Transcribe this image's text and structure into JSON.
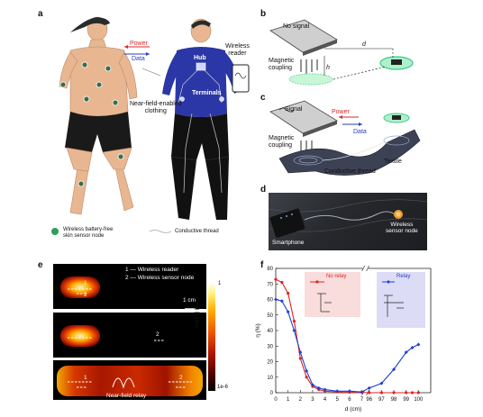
{
  "panel_a": {
    "label": "a",
    "power": "Power",
    "data": "Data",
    "wireless_reader": "Wireless\nreader",
    "hub": "Hub",
    "terminals": "Terminals",
    "clothing": "Near-field-enabled\nclothing",
    "legend_node": "Wireless battery-free\nskin sensor node",
    "legend_thread": "Conductive thread"
  },
  "panel_b": {
    "label": "b",
    "no_signal": "No signal",
    "magnetic_coupling": "Magnetic\ncoupling",
    "d": "d",
    "h": "h"
  },
  "panel_c": {
    "label": "c",
    "signal": "Signal",
    "power": "Power",
    "data": "Data",
    "magnetic_coupling": "Magnetic\ncoupling",
    "textile": "Textile",
    "conductive_thread": "Conductive thread"
  },
  "panel_d": {
    "label": "d",
    "smartphone": "Smartphone",
    "node": "Wireless\nsensor node"
  },
  "panel_e": {
    "label": "e",
    "legend1": "1 — Wireless reader",
    "legend2": "2 — Wireless sensor node",
    "scale": "1 cm",
    "relay": "Near-field relay",
    "n1": "1",
    "n2": "2",
    "cb_top": "1",
    "cb_bottom": "1e-6",
    "cb_label": "log|H",
    "cb_sub": "z",
    "cb_unit": "| (a.u.)"
  },
  "panel_f": {
    "label": "f",
    "no_relay": "No relay",
    "relay": "Relay"
  },
  "chart_data": {
    "type": "line",
    "xlabel": "d (cm)",
    "ylabel": "η (%)",
    "ylim": [
      0,
      80
    ],
    "yticks": [
      "0",
      "10",
      "20",
      "30",
      "40",
      "50",
      "60",
      "70",
      "80"
    ],
    "xticks": [
      "0",
      "1",
      "2",
      "3",
      "4",
      "5",
      "6",
      "7",
      "96",
      "97",
      "98",
      "99",
      "100"
    ],
    "series": [
      {
        "name": "No relay",
        "color": "#e02424",
        "x": [
          0,
          0.5,
          1,
          1.5,
          2,
          2.5,
          3,
          3.5,
          4,
          5,
          6,
          7,
          96,
          97,
          98,
          99,
          99.5,
          100
        ],
        "y": [
          73,
          71,
          64,
          46,
          22,
          10,
          4,
          2,
          1,
          0.5,
          0.3,
          0.2,
          0,
          0,
          0,
          0,
          0,
          0
        ]
      },
      {
        "name": "Relay",
        "color": "#1f3fd1",
        "x": [
          0,
          0.5,
          1,
          1.5,
          2,
          2.5,
          3,
          3.5,
          4,
          5,
          6,
          7,
          96,
          97,
          98,
          99,
          99.5,
          100
        ],
        "y": [
          60,
          59,
          52,
          40,
          26,
          14,
          5,
          3,
          2,
          1,
          1,
          0.5,
          3,
          6,
          15,
          26,
          29,
          31
        ]
      }
    ]
  }
}
